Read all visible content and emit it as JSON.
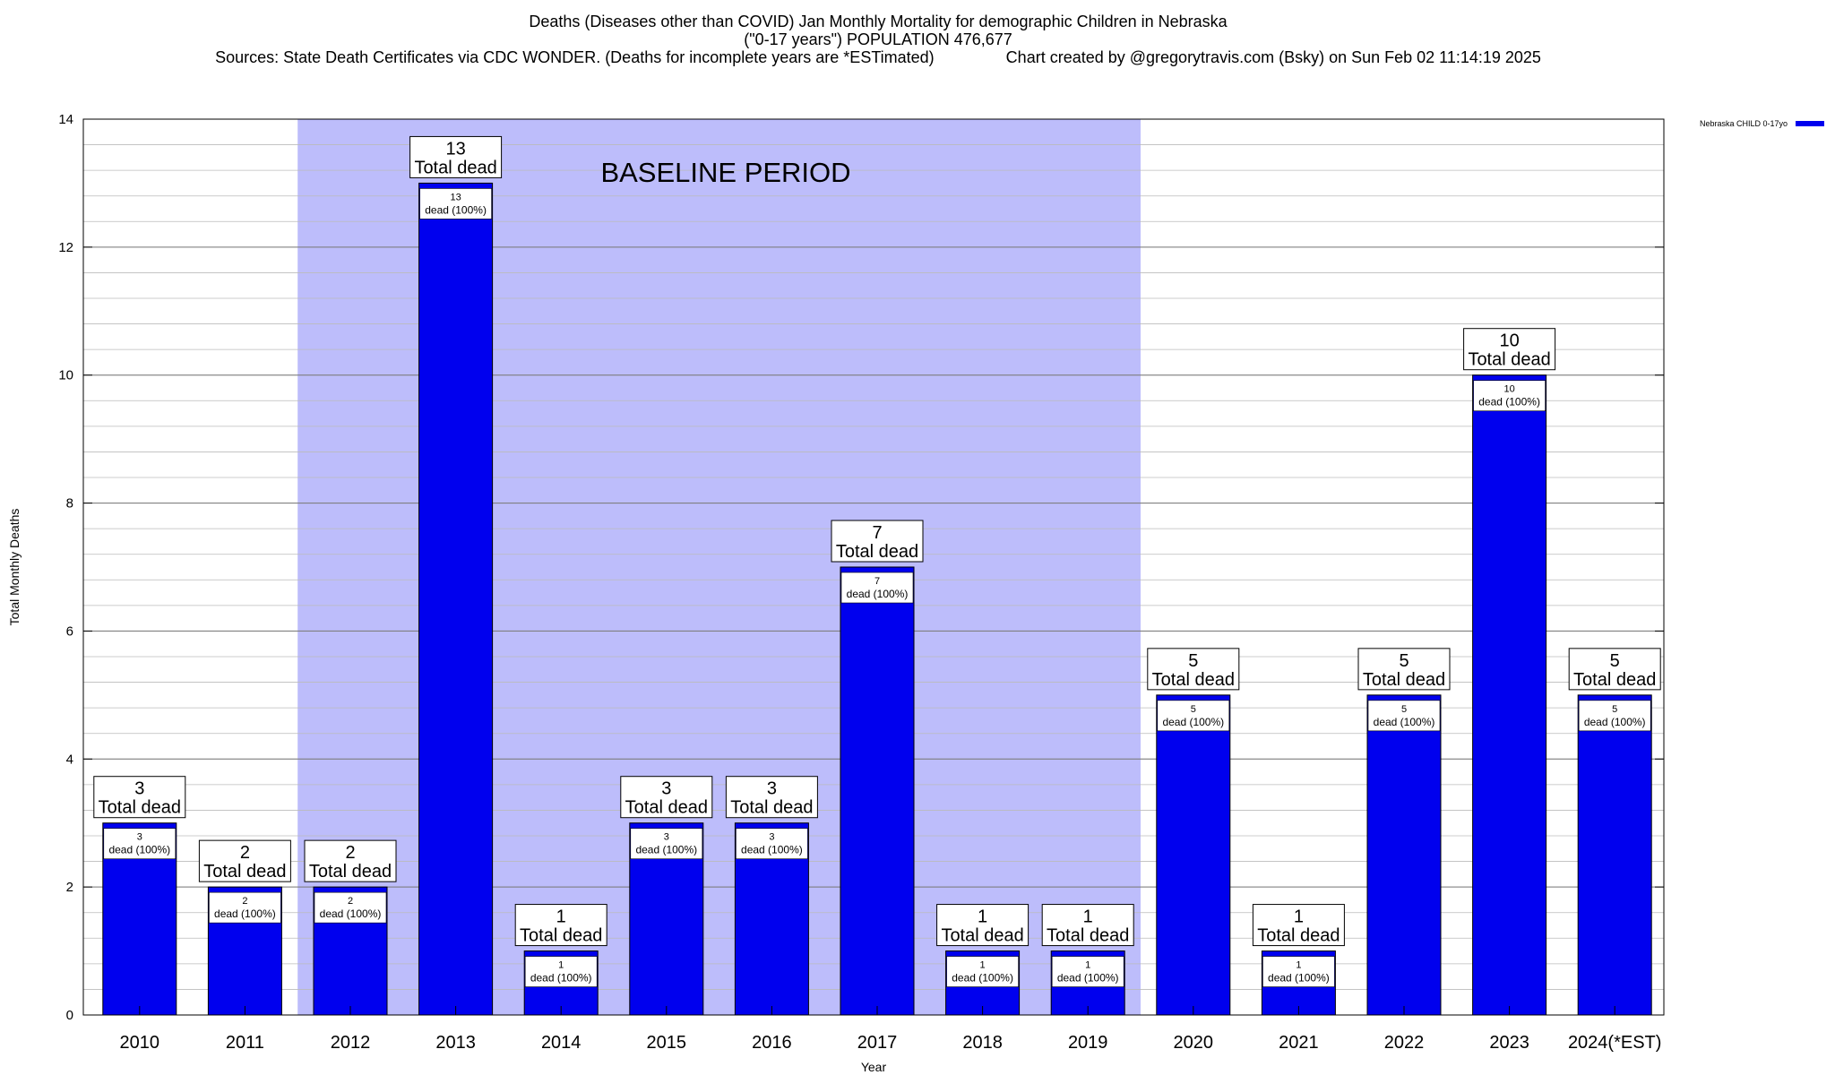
{
  "header": {
    "line1": "Deaths (Diseases other than COVID) Jan Monthly Mortality for demographic Children in Nebraska",
    "line2": "(\"0-17 years\") POPULATION 476,677",
    "line3": "Sources: State Death Certificates via CDC WONDER. (Deaths for incomplete years are *ESTimated)                Chart created by @gregorytravis.com (Bsky) on Sun Feb 02 11:14:19 2025"
  },
  "chart_data": {
    "type": "bar",
    "categories": [
      "2010",
      "2011",
      "2012",
      "2013",
      "2014",
      "2015",
      "2016",
      "2017",
      "2018",
      "2019",
      "2020",
      "2021",
      "2022",
      "2023",
      "2024(*EST)"
    ],
    "series": [
      {
        "name": "Nebraska CHILD 0-17yo",
        "color": "#0000ee",
        "values": [
          3,
          2,
          2,
          13,
          1,
          3,
          3,
          7,
          1,
          1,
          5,
          1,
          5,
          10,
          5
        ]
      }
    ],
    "inner_label_suffix": "dead (100%)",
    "total_label_text": "Total dead",
    "xlabel": "Year",
    "ylabel": "Total Monthly Deaths",
    "ylim": [
      0,
      14
    ],
    "yticks": [
      0,
      2,
      4,
      6,
      8,
      10,
      12,
      14
    ],
    "grid": true,
    "legend_position": "top-right",
    "baseline": {
      "label": "BASELINE PERIOD",
      "start": "2012",
      "end": "2019",
      "color": "#bdbdfb"
    }
  }
}
